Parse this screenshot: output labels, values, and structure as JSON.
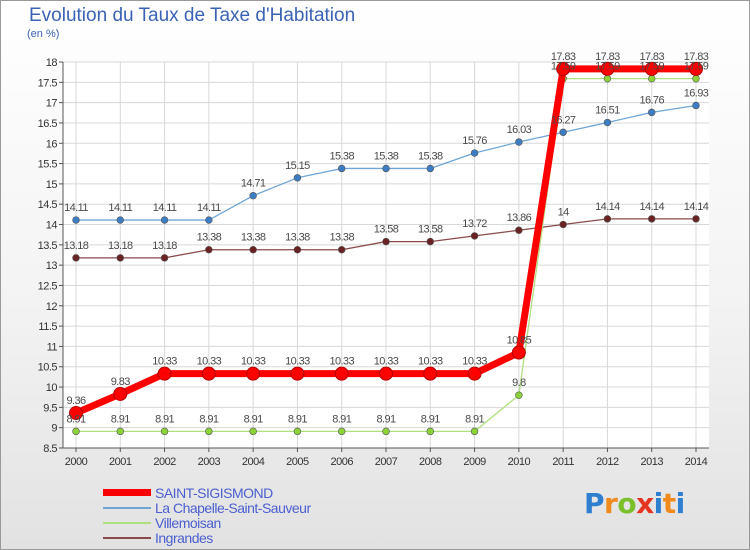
{
  "title": "Evolution du Taux de Taxe d'Habitation",
  "subtitle": "(en %)",
  "brand": "Proxiti",
  "chart_data": {
    "type": "line",
    "x": [
      "2000",
      "2001",
      "2002",
      "2003",
      "2004",
      "2005",
      "2006",
      "2007",
      "2008",
      "2009",
      "2010",
      "2011",
      "2012",
      "2013",
      "2014"
    ],
    "ylim": [
      8.5,
      18
    ],
    "yticks": [
      "8.5",
      "9",
      "9.5",
      "10",
      "10.5",
      "11",
      "11.5",
      "12",
      "12.5",
      "13",
      "13.5",
      "14",
      "14.5",
      "15",
      "15.5",
      "16",
      "16.5",
      "17",
      "17.5",
      "18"
    ],
    "grid": true,
    "legend_position": "bottom-left",
    "series": [
      {
        "name": "SAINT-SIGISMOND",
        "color": "#ff0000",
        "marker_color": "#ff0000",
        "width": 7,
        "values": [
          9.36,
          9.83,
          10.33,
          10.33,
          10.33,
          10.33,
          10.33,
          10.33,
          10.33,
          10.33,
          10.85,
          17.83,
          17.83,
          17.83,
          17.83
        ],
        "labels": [
          "9.36",
          "9.83",
          "10.33",
          "10.33",
          "10.33",
          "10.33",
          "10.33",
          "10.33",
          "10.33",
          "10.33",
          "10.85",
          "17.83",
          "17.83",
          "17.83",
          "17.83"
        ]
      },
      {
        "name": "La Chapelle-Saint-Sauveur",
        "color": "#6ea5d6",
        "marker_color": "#3d7dc4",
        "width": 1.3,
        "values": [
          14.11,
          14.11,
          14.11,
          14.11,
          14.71,
          15.15,
          15.38,
          15.38,
          15.38,
          15.76,
          16.03,
          16.27,
          16.51,
          16.76,
          16.93
        ],
        "labels": [
          "14.11",
          "14.11",
          "14.11",
          "14.11",
          "14.71",
          "15.15",
          "15.38",
          "15.38",
          "15.38",
          "15.76",
          "16.03",
          "16.27",
          "16.51",
          "16.76",
          "16.93"
        ]
      },
      {
        "name": "Villemoisan",
        "color": "#aee07e",
        "marker_color": "#8cd33a",
        "width": 1.3,
        "values": [
          8.91,
          8.91,
          8.91,
          8.91,
          8.91,
          8.91,
          8.91,
          8.91,
          8.91,
          8.91,
          9.8,
          17.59,
          17.59,
          17.59,
          17.59
        ],
        "labels": [
          "8.91",
          "8.91",
          "8.91",
          "8.91",
          "8.91",
          "8.91",
          "8.91",
          "8.91",
          "8.91",
          "8.91",
          "9.8",
          "17.59",
          "17.59",
          "17.59",
          "17.59"
        ]
      },
      {
        "name": "Ingrandes",
        "color": "#8a4a4a",
        "marker_color": "#6b2222",
        "width": 1.3,
        "values": [
          13.18,
          13.18,
          13.18,
          13.38,
          13.38,
          13.38,
          13.38,
          13.58,
          13.58,
          13.72,
          13.86,
          14,
          14.14,
          14.14,
          14.14
        ],
        "labels": [
          "13.18",
          "13.18",
          "13.18",
          "13.38",
          "13.38",
          "13.38",
          "13.38",
          "13.58",
          "13.58",
          "13.72",
          "13.86",
          "14",
          "14.14",
          "14.14",
          "14.14"
        ]
      }
    ]
  }
}
